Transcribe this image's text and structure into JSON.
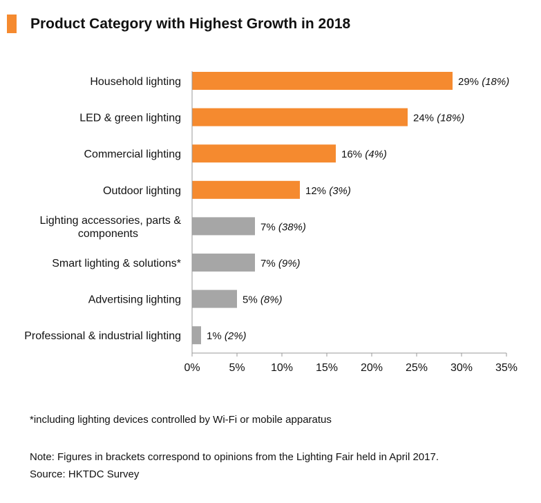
{
  "title": "Product Category with Highest Growth in 2018",
  "colors": {
    "accent": "#F58A2F",
    "gray": "#A6A6A6",
    "axis": "#999999"
  },
  "chart_data": {
    "type": "bar",
    "orientation": "horizontal",
    "title": "Product Category with Highest Growth in 2018",
    "categories": [
      [
        "Household lighting"
      ],
      [
        "LED & green lighting"
      ],
      [
        "Commercial lighting"
      ],
      [
        "Outdoor lighting"
      ],
      [
        "Lighting accessories, parts &",
        "components"
      ],
      [
        "Smart lighting & solutions*"
      ],
      [
        "Advertising lighting"
      ],
      [
        "Professional & industrial lighting"
      ]
    ],
    "values": [
      29,
      24,
      16,
      12,
      7,
      7,
      5,
      1
    ],
    "value_labels": [
      "29%",
      "24%",
      "16%",
      "12%",
      "7%",
      "7%",
      "5%",
      "1%"
    ],
    "bracket_labels": [
      "(18%)",
      "(18%)",
      "(4%)",
      "(3%)",
      "(38%)",
      "(9%)",
      "(8%)",
      "(2%)"
    ],
    "bar_colors": [
      "accent",
      "accent",
      "accent",
      "accent",
      "gray",
      "gray",
      "gray",
      "gray"
    ],
    "xlim": [
      0,
      35
    ],
    "xticks": [
      0,
      5,
      10,
      15,
      20,
      25,
      30,
      35
    ],
    "xtick_labels": [
      "0%",
      "5%",
      "10%",
      "15%",
      "20%",
      "25%",
      "30%",
      "35%"
    ],
    "xlabel": "",
    "ylabel": "",
    "grid": false
  },
  "footnote": "*including lighting devices controlled by Wi-Fi or mobile apparatus",
  "note": "Note: Figures in brackets correspond to opinions from the Lighting Fair held in April 2017.",
  "source": "Source: HKTDC Survey"
}
